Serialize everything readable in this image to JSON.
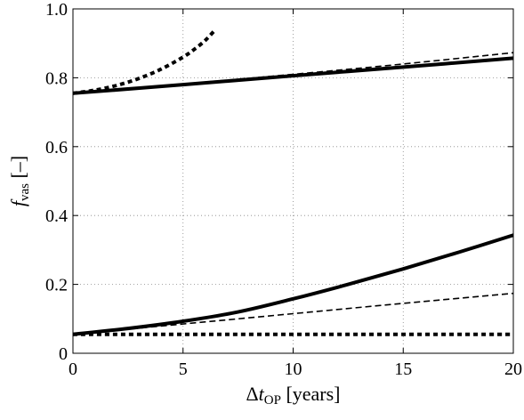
{
  "chart_data": {
    "type": "line",
    "title": "",
    "xlabel": {
      "main": "Δ",
      "var": "t",
      "sub": "OP",
      "unit": " [years]"
    },
    "ylabel": {
      "var": "f",
      "sub": "vas",
      "unit": " [–]"
    },
    "xlim": [
      0,
      20
    ],
    "ylim": [
      0,
      1.0
    ],
    "xticks": [
      0,
      5,
      10,
      15,
      20
    ],
    "xtick_labels": [
      "0",
      "5",
      "10",
      "15",
      "20"
    ],
    "yticks": [
      0,
      0.2,
      0.4,
      0.6,
      0.8,
      1.0
    ],
    "ytick_labels": [
      "0",
      "0.2",
      "0.4",
      "0.6",
      "0.8",
      "1.0"
    ],
    "grid": true,
    "legend": "none",
    "series": [
      {
        "style": "dotted-thick",
        "x": [
          0,
          1,
          2,
          3,
          4,
          5,
          5.5,
          6,
          6.4
        ],
        "y": [
          0.755,
          0.764,
          0.778,
          0.798,
          0.825,
          0.86,
          0.882,
          0.908,
          0.935
        ]
      },
      {
        "style": "dashed-thin",
        "x": [
          0,
          5,
          10,
          15,
          20
        ],
        "y": [
          0.755,
          0.782,
          0.81,
          0.84,
          0.873
        ]
      },
      {
        "style": "solid-thick",
        "x": [
          0,
          5,
          10,
          15,
          20
        ],
        "y": [
          0.755,
          0.78,
          0.806,
          0.831,
          0.857
        ]
      },
      {
        "style": "solid-thick",
        "x": [
          0,
          2.5,
          5,
          7.5,
          10,
          12.5,
          15,
          17.5,
          20
        ],
        "y": [
          0.055,
          0.072,
          0.093,
          0.12,
          0.158,
          0.2,
          0.245,
          0.293,
          0.343
        ]
      },
      {
        "style": "dashed-thin",
        "x": [
          0,
          5,
          10,
          15,
          20
        ],
        "y": [
          0.055,
          0.085,
          0.115,
          0.145,
          0.174
        ]
      },
      {
        "style": "dotted-thick",
        "x": [
          0,
          20
        ],
        "y": [
          0.055,
          0.055
        ]
      }
    ]
  }
}
